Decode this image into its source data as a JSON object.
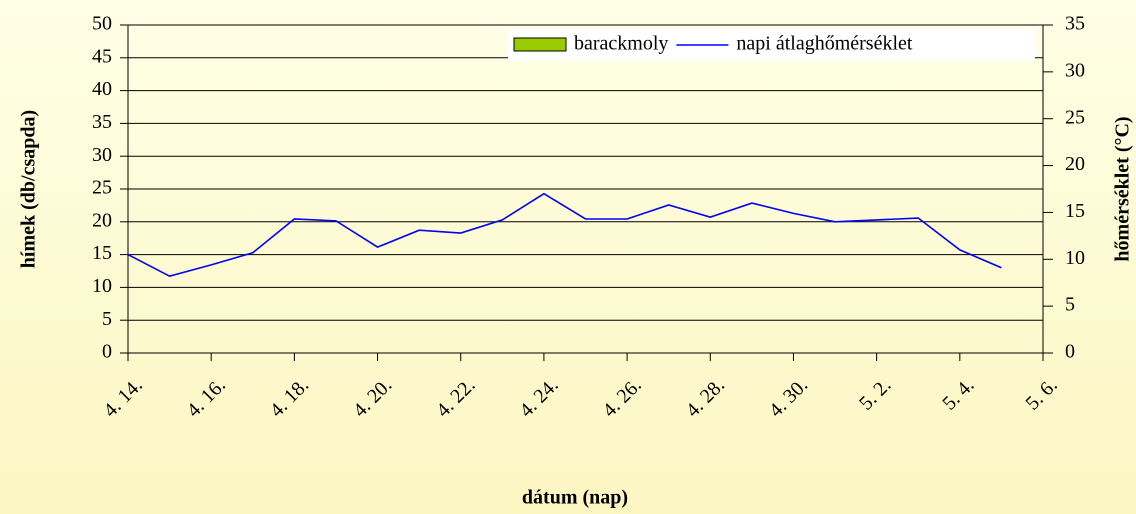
{
  "chart_data": {
    "type": "bar-line",
    "x_label": "dátum (nap)",
    "y_label": "hímek (db/csapda)",
    "y2_label": "hőmérséklet (°C)",
    "categories": [
      "4. 14.",
      null,
      "4. 16.",
      null,
      "4. 18.",
      null,
      "4. 20.",
      null,
      "4. 22.",
      null,
      "4. 24.",
      null,
      "4. 26.",
      null,
      "4. 28.",
      null,
      "4. 30.",
      null,
      "5. 2.",
      null,
      "5. 4.",
      null,
      "5. 6."
    ],
    "series": [
      {
        "name": "barackmoly",
        "type": "bar",
        "color": "#99cc00",
        "values": [
          0,
          0,
          0,
          0,
          0,
          0,
          0,
          0,
          0,
          0,
          0,
          0,
          0,
          0,
          0,
          0,
          0,
          0,
          0,
          0,
          0,
          0,
          0
        ]
      },
      {
        "name": "napi átlaghőmérséklet",
        "type": "line",
        "axis": "y2",
        "color": "#0000ff",
        "values": [
          10.5,
          8.2,
          9.4,
          10.7,
          14.3,
          14.1,
          11.3,
          13.1,
          12.8,
          14.2,
          17.0,
          14.3,
          14.3,
          15.8,
          14.5,
          16.0,
          14.9,
          14.0,
          14.2,
          14.4,
          11.0,
          9.1,
          null
        ]
      }
    ],
    "ylim": [
      0,
      50
    ],
    "yticks": [
      0,
      5,
      10,
      15,
      20,
      25,
      30,
      35,
      40,
      45,
      50
    ],
    "y2lim": [
      0,
      35
    ],
    "y2ticks": [
      0,
      5,
      10,
      15,
      20,
      25,
      30,
      35
    ],
    "grid": true,
    "legend": "top-right"
  }
}
